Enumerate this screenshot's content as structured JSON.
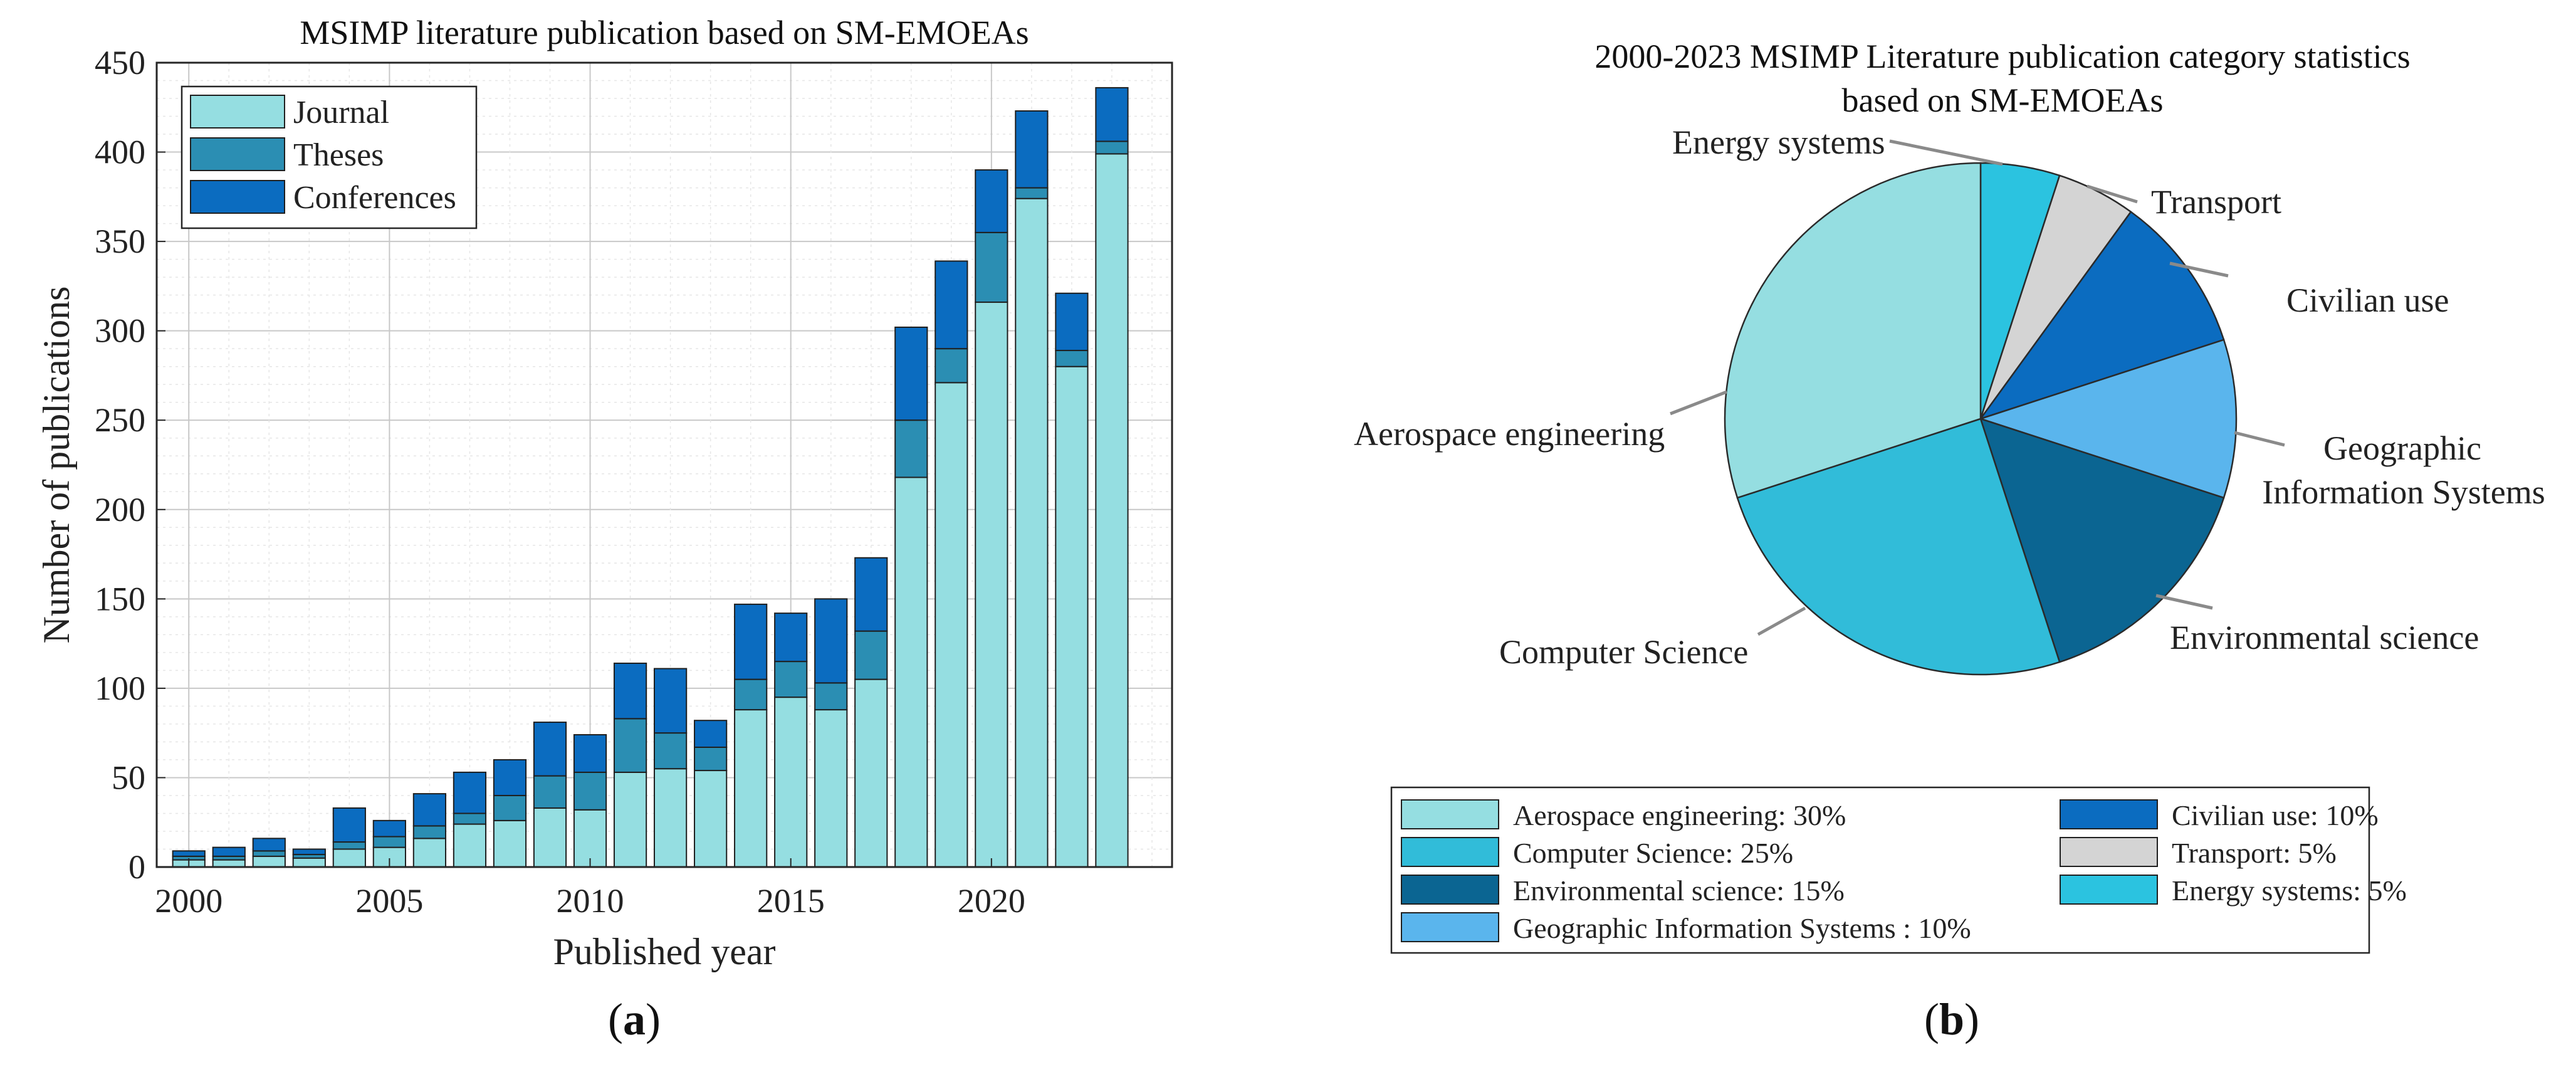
{
  "chart_data": [
    {
      "type": "bar",
      "stacked": true,
      "title": "MSIMP literature publication based on SM-EMOEAs",
      "xlabel": "Published year",
      "ylabel": "Number of publications",
      "ylim": [
        0,
        450
      ],
      "yticks": [
        0,
        50,
        100,
        150,
        200,
        250,
        300,
        350,
        400,
        450
      ],
      "xticks": [
        2000,
        2005,
        2010,
        2015,
        2020
      ],
      "grid": true,
      "legend_position": "top-left",
      "categories": [
        2000,
        2001,
        2002,
        2003,
        2004,
        2005,
        2006,
        2007,
        2008,
        2009,
        2010,
        2011,
        2012,
        2013,
        2014,
        2015,
        2016,
        2017,
        2018,
        2019,
        2020,
        2021,
        2022,
        2023
      ],
      "series": [
        {
          "name": "Journal",
          "color": "#95dee1",
          "values": [
            4,
            4,
            6,
            5,
            10,
            11,
            16,
            24,
            26,
            33,
            32,
            53,
            55,
            54,
            88,
            95,
            88,
            105,
            218,
            271,
            316,
            374,
            280,
            399
          ]
        },
        {
          "name": "Theses",
          "color": "#2b8eb3",
          "values": [
            2,
            2,
            3,
            2,
            4,
            6,
            7,
            6,
            14,
            18,
            21,
            30,
            20,
            13,
            17,
            20,
            15,
            27,
            32,
            19,
            39,
            6,
            9,
            7
          ]
        },
        {
          "name": "Conferences",
          "color": "#0b6cc0",
          "values": [
            3,
            5,
            7,
            3,
            19,
            9,
            18,
            23,
            20,
            30,
            21,
            31,
            36,
            15,
            42,
            27,
            47,
            41,
            52,
            49,
            35,
            43,
            32,
            30
          ]
        }
      ]
    },
    {
      "type": "pie",
      "title_line1": "2000-2023 MSIMP Literature publication category statistics",
      "title_line2": "based on SM-EMOEAs",
      "slices": [
        {
          "label": "Aerospace engineering",
          "legend": "Aerospace engineering: 30%",
          "value": 30,
          "color": "#95dee1"
        },
        {
          "label": "Computer Science",
          "legend": "Computer Science: 25%",
          "value": 25,
          "color": "#31bcd9"
        },
        {
          "label": "Environmental science",
          "legend": "Environmental science: 15%",
          "value": 15,
          "color": "#0b6592"
        },
        {
          "label": "Geographic Information Systems",
          "legend": "Geographic Information Systems : 10%",
          "value": 10,
          "color": "#5ab5ed"
        },
        {
          "label": "Civilian use",
          "legend": "Civilian use: 10%",
          "value": 10,
          "color": "#0b6cc0"
        },
        {
          "label": "Transport",
          "legend": "Transport: 5%",
          "value": 5,
          "color": "#d4d4d4"
        },
        {
          "label": "Energy systems",
          "legend": "Energy systems: 5%",
          "value": 5,
          "color": "#2bc3e0"
        }
      ],
      "outside_labels": {
        "energy": "Energy systems",
        "transport": "Transport",
        "civilian": "Civilian use",
        "geo_line1": "Geographic",
        "geo_line2": "Information Systems",
        "environmental": "Environmental science",
        "computer": "Computer Science",
        "aerospace": "Aerospace engineering"
      }
    }
  ],
  "panel_labels": {
    "a": "a",
    "b": "b"
  }
}
